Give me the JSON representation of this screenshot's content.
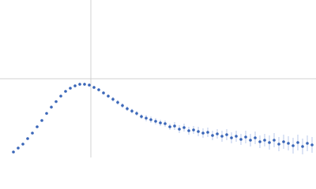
{
  "chart_data": {
    "type": "scatter",
    "xlim": [
      0,
      400
    ],
    "ylim": [
      0,
      200
    ],
    "reference_lines": {
      "x": [
        115
      ],
      "y": [
        100
      ],
      "color": "#d0d0d0"
    },
    "series": [
      {
        "color": "#3a66b8",
        "error_color": "#a9bde6",
        "x": [
          17,
          23,
          29,
          35,
          41,
          47,
          53,
          59,
          65,
          71,
          77,
          83,
          89,
          95,
          101,
          107,
          113,
          119,
          125,
          131,
          137,
          143,
          149,
          155,
          161,
          167,
          173,
          179,
          185,
          191,
          197,
          203,
          209,
          215,
          221,
          227,
          233,
          239,
          245,
          251,
          257,
          263,
          269,
          275,
          281,
          287,
          293,
          299,
          305,
          311,
          317,
          323,
          329,
          335,
          341,
          347,
          353,
          359,
          365,
          371,
          377,
          383,
          389,
          395
        ],
        "values": [
          7,
          12,
          17,
          24,
          31,
          39,
          47,
          56,
          64,
          71,
          78,
          84,
          88,
          91,
          93,
          93,
          92,
          89,
          86,
          82,
          78,
          74,
          70,
          66,
          62,
          59,
          56,
          52,
          50,
          48,
          46,
          44,
          43,
          39,
          40,
          36,
          38,
          34,
          35,
          33,
          31,
          32,
          28,
          30,
          27,
          29,
          25,
          27,
          23,
          26,
          22,
          25,
          20,
          22,
          19,
          22,
          17,
          20,
          18,
          15,
          19,
          14,
          18,
          16
        ],
        "errors": [
          1,
          1,
          1,
          1,
          1,
          1,
          1,
          1,
          1,
          1,
          1,
          1,
          1,
          2,
          2,
          2,
          2,
          2,
          2,
          2,
          2,
          3,
          3,
          3,
          3,
          3,
          3,
          3,
          4,
          4,
          4,
          4,
          4,
          4,
          5,
          5,
          5,
          5,
          5,
          6,
          6,
          6,
          6,
          6,
          7,
          7,
          7,
          7,
          7,
          8,
          8,
          8,
          8,
          8,
          9,
          9,
          9,
          9,
          9,
          10,
          10,
          10,
          10,
          10
        ]
      }
    ]
  }
}
